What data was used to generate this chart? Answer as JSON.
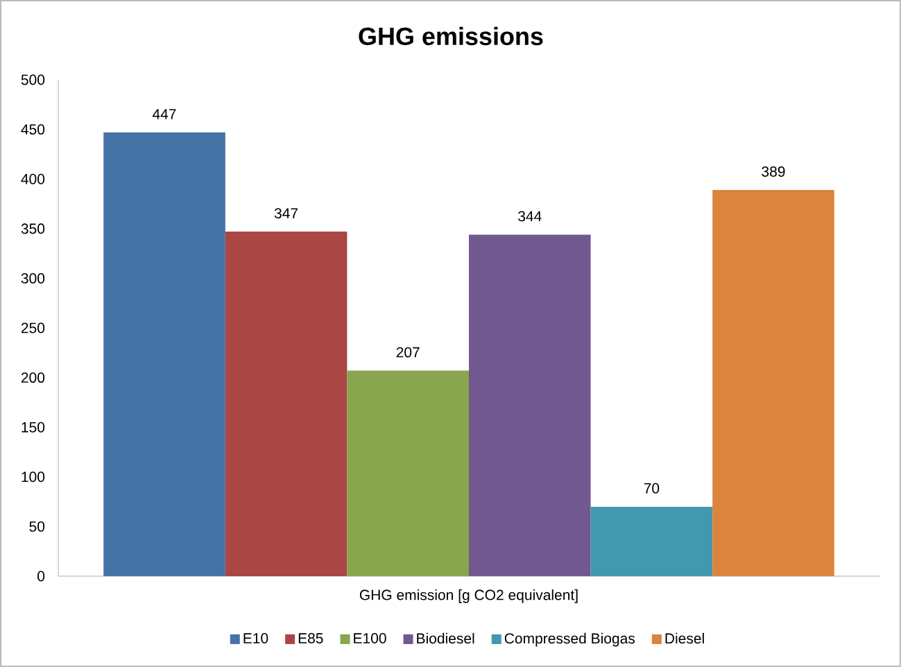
{
  "chart_data": {
    "type": "bar",
    "title": "GHG emissions",
    "categories": [
      "GHG emission [g CO2 equivalent]"
    ],
    "series": [
      {
        "name": "E10",
        "color": "#4572a7",
        "values": [
          447
        ]
      },
      {
        "name": "E85",
        "color": "#aa4643",
        "values": [
          347
        ]
      },
      {
        "name": "E100",
        "color": "#89a54e",
        "values": [
          207
        ]
      },
      {
        "name": "Biodiesel",
        "color": "#71588f",
        "values": [
          344
        ]
      },
      {
        "name": "Compressed Biogas",
        "color": "#4198af",
        "values": [
          70
        ]
      },
      {
        "name": "Diesel",
        "color": "#db843d",
        "values": [
          389
        ]
      }
    ],
    "ylim": [
      0,
      500
    ],
    "yticks": [
      0,
      50,
      100,
      150,
      200,
      250,
      300,
      350,
      400,
      450,
      500
    ],
    "data_labels": true,
    "legend": "bottom",
    "grid": false
  }
}
